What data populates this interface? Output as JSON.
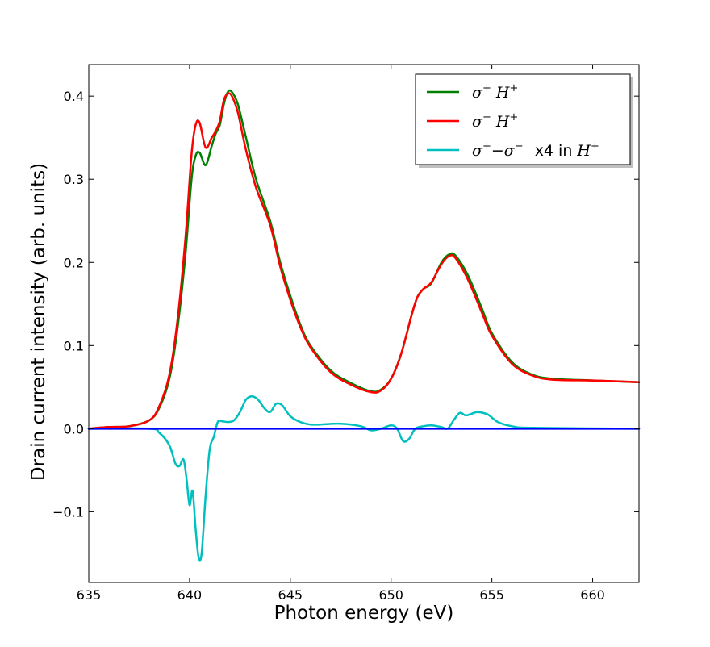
{
  "chart_data": {
    "type": "line",
    "xlabel": "Photon energy (eV)",
    "ylabel": "Drain current intensity (arb. units)",
    "xlim": [
      635,
      662.3
    ],
    "ylim": [
      -0.185,
      0.438
    ],
    "xticks": [
      635,
      640,
      645,
      650,
      655,
      660
    ],
    "yticks": [
      -0.1,
      0.0,
      0.1,
      0.2,
      0.3,
      0.4
    ],
    "ytick_labels": [
      "−0.1",
      "0.0",
      "0.1",
      "0.2",
      "0.3",
      "0.4"
    ],
    "legend_position": "top-right",
    "grid": false,
    "series": [
      {
        "legend": {
          "sym1": "σ",
          "sup1": "+",
          "sym2": " H",
          "sup2": "+",
          "extra": ""
        },
        "color": "#008000",
        "x": [
          635,
          636,
          637,
          638,
          638.5,
          639,
          639.4,
          639.8,
          640.1,
          640.3,
          640.5,
          640.8,
          641.1,
          641.3,
          641.5,
          641.7,
          641.9,
          642.1,
          642.4,
          642.8,
          643.3,
          644,
          644.5,
          645,
          645.5,
          646,
          647,
          648,
          649,
          649.5,
          650,
          650.5,
          651,
          651.3,
          651.6,
          652,
          652.5,
          652.9,
          653.2,
          653.8,
          654.5,
          655,
          656,
          657,
          658,
          660,
          662.3
        ],
        "y": [
          0.0,
          0.002,
          0.003,
          0.01,
          0.025,
          0.06,
          0.12,
          0.21,
          0.3,
          0.328,
          0.332,
          0.317,
          0.34,
          0.355,
          0.365,
          0.39,
          0.405,
          0.405,
          0.39,
          0.35,
          0.3,
          0.25,
          0.2,
          0.16,
          0.125,
          0.1,
          0.07,
          0.055,
          0.045,
          0.047,
          0.06,
          0.09,
          0.135,
          0.158,
          0.168,
          0.175,
          0.2,
          0.21,
          0.208,
          0.185,
          0.145,
          0.115,
          0.08,
          0.065,
          0.06,
          0.058,
          0.056
        ]
      },
      {
        "legend": {
          "sym1": "σ",
          "sup1": "−",
          "sym2": " H",
          "sup2": "+",
          "extra": ""
        },
        "color": "#ff0000",
        "x": [
          635,
          636,
          637,
          638,
          638.5,
          639,
          639.4,
          639.8,
          640.1,
          640.3,
          640.5,
          640.8,
          641.1,
          641.3,
          641.5,
          641.7,
          641.9,
          642.1,
          642.4,
          642.8,
          643.3,
          644,
          644.5,
          645,
          645.5,
          646,
          647,
          648,
          649,
          649.5,
          650,
          650.5,
          651,
          651.3,
          651.6,
          652,
          652.5,
          652.9,
          653.2,
          653.8,
          654.5,
          655,
          656,
          657,
          658,
          660,
          662.3
        ],
        "y": [
          0.0,
          0.002,
          0.003,
          0.01,
          0.027,
          0.065,
          0.13,
          0.23,
          0.33,
          0.365,
          0.368,
          0.338,
          0.35,
          0.358,
          0.37,
          0.395,
          0.403,
          0.4,
          0.38,
          0.335,
          0.29,
          0.245,
          0.195,
          0.155,
          0.122,
          0.098,
          0.068,
          0.053,
          0.044,
          0.046,
          0.06,
          0.09,
          0.135,
          0.158,
          0.168,
          0.176,
          0.198,
          0.208,
          0.205,
          0.18,
          0.14,
          0.112,
          0.078,
          0.064,
          0.059,
          0.058,
          0.056
        ]
      },
      {
        "legend": {
          "sym1": "σ",
          "sup1": "+",
          "sym2": "−σ",
          "sup2": "−",
          "extra": "x4 in H",
          "extra_sup": "+"
        },
        "color": "#00bfbf",
        "x": [
          635,
          638,
          638.5,
          639,
          639.3,
          639.5,
          639.7,
          639.85,
          640,
          640.15,
          640.3,
          640.45,
          640.6,
          640.8,
          641,
          641.2,
          641.4,
          641.6,
          641.9,
          642.2,
          642.5,
          642.8,
          643.1,
          643.4,
          643.7,
          644,
          644.3,
          644.6,
          645,
          645.5,
          646,
          646.5,
          647.5,
          648.5,
          649,
          649.5,
          650,
          650.3,
          650.6,
          650.9,
          651.2,
          651.6,
          652,
          652.5,
          652.8,
          653.1,
          653.4,
          653.7,
          654,
          654.3,
          654.8,
          655.3,
          656,
          657,
          662.3
        ],
        "y": [
          0.0,
          0.0,
          -0.005,
          -0.02,
          -0.042,
          -0.045,
          -0.037,
          -0.06,
          -0.092,
          -0.075,
          -0.12,
          -0.155,
          -0.15,
          -0.08,
          -0.025,
          -0.01,
          0.008,
          0.009,
          0.008,
          0.01,
          0.02,
          0.035,
          0.039,
          0.035,
          0.025,
          0.02,
          0.03,
          0.028,
          0.015,
          0.008,
          0.005,
          0.005,
          0.006,
          0.003,
          -0.002,
          0.0,
          0.004,
          0.0,
          -0.015,
          -0.012,
          0.0,
          0.003,
          0.004,
          0.002,
          0.0,
          0.01,
          0.019,
          0.016,
          0.018,
          0.02,
          0.017,
          0.008,
          0.003,
          0.001,
          0.0
        ]
      },
      {
        "color": "#0000ff",
        "x": [
          635,
          662.3
        ],
        "y": [
          0.0,
          0.0
        ]
      }
    ]
  }
}
